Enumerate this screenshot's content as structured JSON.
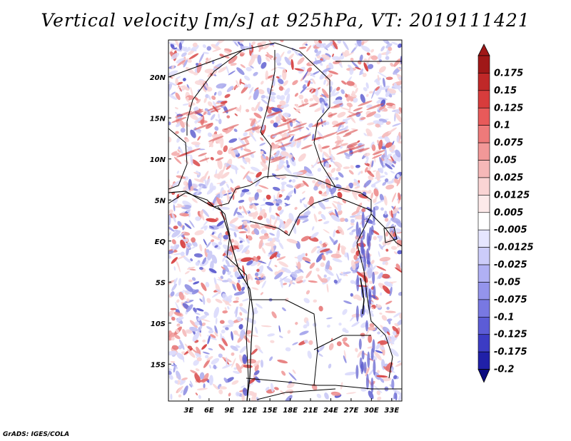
{
  "title": "Vertical velocity [m/s] at 925hPa, VT: 2019111421",
  "footer": "GrADS: IGES/COLA",
  "map": {
    "lon_range": [
      0,
      34.5
    ],
    "lat_range": [
      -19.5,
      24.5
    ],
    "lat_ticks": [
      {
        "label": "20N",
        "value": 20
      },
      {
        "label": "15N",
        "value": 15
      },
      {
        "label": "10N",
        "value": 10
      },
      {
        "label": "5N",
        "value": 5
      },
      {
        "label": "EQ",
        "value": 0
      },
      {
        "label": "5S",
        "value": -5
      },
      {
        "label": "10S",
        "value": -10
      },
      {
        "label": "15S",
        "value": -15
      }
    ],
    "lon_ticks": [
      {
        "label": "3E",
        "value": 3
      },
      {
        "label": "6E",
        "value": 6
      },
      {
        "label": "9E",
        "value": 9
      },
      {
        "label": "12E",
        "value": 12
      },
      {
        "label": "15E",
        "value": 15
      },
      {
        "label": "18E",
        "value": 18
      },
      {
        "label": "21E",
        "value": 21
      },
      {
        "label": "24E",
        "value": 24
      },
      {
        "label": "27E",
        "value": 27
      },
      {
        "label": "30E",
        "value": 30
      },
      {
        "label": "33E",
        "value": 33
      }
    ]
  },
  "colorbar": {
    "levels": [
      "0.175",
      "0.15",
      "0.125",
      "0.1",
      "0.075",
      "0.05",
      "0.025",
      "0.0125",
      "0.005",
      "-0.005",
      "-0.0125",
      "-0.025",
      "-0.05",
      "-0.075",
      "-0.1",
      "-0.125",
      "-0.175",
      "-0.2"
    ],
    "colors": [
      "#a01818",
      "#c02828",
      "#d83c3c",
      "#e85a5a",
      "#ee7a7a",
      "#f29898",
      "#f6b8b8",
      "#fad4d4",
      "#fdeaea",
      "#ffffff",
      "#e6e6ff",
      "#ccccfa",
      "#b0b0f4",
      "#9494ec",
      "#7878e2",
      "#5c5cd6",
      "#3c3cc4",
      "#2020a8",
      "#0c0c80"
    ]
  },
  "colors": {
    "positive": "#d84848",
    "negative": "#4848d0",
    "border": "#000000"
  }
}
